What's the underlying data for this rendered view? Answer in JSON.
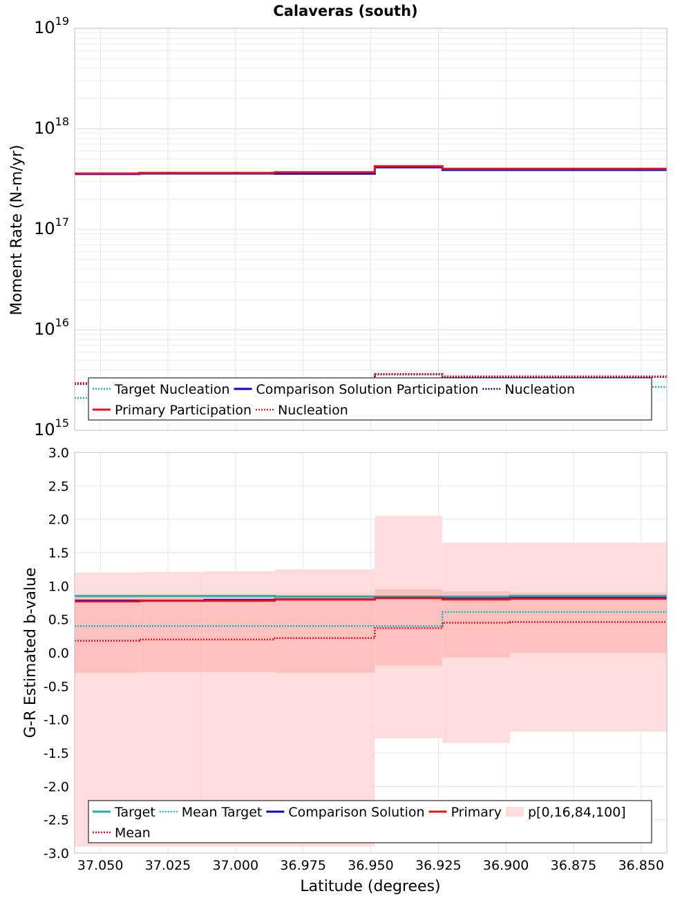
{
  "figure": {
    "title": "Calaveras (south)",
    "xlabel": "Latitude (degrees)"
  },
  "chart_data": [
    {
      "type": "line",
      "step": true,
      "ylabel": "Moment Rate (N-m/yr)",
      "y_scale": "log",
      "ylim": [
        1000000000000000.0,
        1e+19
      ],
      "y_ticks": [
        {
          "value": 1000000000000000.0,
          "base": "10",
          "exp": "15"
        },
        {
          "value": 1e+16,
          "base": "10",
          "exp": "16"
        },
        {
          "value": 1e+17,
          "base": "10",
          "exp": "17"
        },
        {
          "value": 1e+18,
          "base": "10",
          "exp": "18"
        },
        {
          "value": 1e+19,
          "base": "10",
          "exp": "19"
        }
      ],
      "xlim": [
        37.0595,
        36.8405
      ],
      "x_reversed": true,
      "x_ticks": [
        "37.050",
        "37.025",
        "37.000",
        "36.975",
        "36.950",
        "36.925",
        "36.900",
        "36.875",
        "36.850"
      ],
      "grid": true,
      "x_bins": [
        37.0595,
        37.0355,
        37.0115,
        36.9855,
        36.9485,
        36.9235,
        36.8985,
        36.8405
      ],
      "series": [
        {
          "name": "Target Nucleation",
          "style": "dotted",
          "color": "#19b2b2",
          "values": [
            2100000000000000.0,
            2150000000000000.0,
            2200000000000000.0,
            2200000000000000.0,
            2300000000000000.0,
            2600000000000000.0,
            2700000000000000.0
          ]
        },
        {
          "name": "Comparison Solution Participation",
          "style": "solid",
          "color": "#0000cc",
          "values": [
            3.55e+17,
            3.6e+17,
            3.6e+17,
            3.58e+17,
            4.15e+17,
            3.9e+17,
            3.9e+17
          ]
        },
        {
          "name": "Nucleation",
          "style": "dotted",
          "color": "#00008b",
          "values": [
            2900000000000000.0,
            2900000000000000.0,
            2950000000000000.0,
            2950000000000000.0,
            3600000000000000.0,
            3400000000000000.0,
            3400000000000000.0
          ]
        },
        {
          "name": "Primary Participation",
          "style": "solid",
          "color": "#e8121c",
          "values": [
            3.6e+17,
            3.65e+17,
            3.65e+17,
            3.7e+17,
            4.25e+17,
            4e+17,
            4e+17
          ]
        },
        {
          "name": "Nucleation",
          "style": "dotted",
          "color": "#e8121c",
          "values": [
            2950000000000000.0,
            2950000000000000.0,
            3000000000000000.0,
            3000000000000000.0,
            3650000000000000.0,
            3450000000000000.0,
            3450000000000000.0
          ]
        }
      ],
      "legend": "bottom",
      "legend_rows": [
        [
          0,
          1,
          2
        ],
        [
          3,
          4
        ]
      ]
    },
    {
      "type": "line",
      "step": true,
      "ylabel": "G-R Estimated b-value",
      "ylim": [
        -3.0,
        3.0
      ],
      "y_ticks": [
        "-3.0",
        "-2.5",
        "-2.0",
        "-1.5",
        "-1.0",
        "-0.5",
        "0.0",
        "0.5",
        "1.0",
        "1.5",
        "2.0",
        "2.5",
        "3.0"
      ],
      "xlim": [
        37.0595,
        36.8405
      ],
      "x_reversed": true,
      "x_ticks": [
        "37.050",
        "37.025",
        "37.000",
        "36.975",
        "36.950",
        "36.925",
        "36.900",
        "36.875",
        "36.850"
      ],
      "grid": true,
      "x_bins": [
        37.0595,
        37.0355,
        37.0115,
        36.9855,
        36.9485,
        36.9235,
        36.8985,
        36.8405
      ],
      "bands": {
        "name": "p[0,16,84,100]",
        "outer_color": "#ffdcdc",
        "inner_color": "#ffc0c0",
        "p0": [
          -2.9,
          -2.9,
          -2.9,
          -2.9,
          -1.28,
          -1.35,
          -1.18
        ],
        "p16": [
          -0.3,
          -0.29,
          -0.29,
          -0.3,
          -0.19,
          -0.07,
          0.0
        ],
        "p84": [
          0.85,
          0.86,
          0.86,
          0.87,
          0.95,
          0.92,
          0.9
        ],
        "p100": [
          1.2,
          1.21,
          1.22,
          1.25,
          2.05,
          1.65,
          1.65
        ]
      },
      "series": [
        {
          "name": "Target",
          "style": "solid",
          "color": "#2ba8a8",
          "values": [
            0.85,
            0.85,
            0.85,
            0.84,
            0.84,
            0.84,
            0.85
          ]
        },
        {
          "name": "Mean Target",
          "style": "dotted",
          "color": "#19b2b2",
          "values": [
            0.4,
            0.4,
            0.4,
            0.4,
            0.4,
            0.61,
            0.61
          ]
        },
        {
          "name": "Comparison Solution",
          "style": "solid",
          "color": "#0000cc",
          "values": [
            0.78,
            0.78,
            0.79,
            0.8,
            0.82,
            0.81,
            0.82
          ]
        },
        {
          "name": "Primary",
          "style": "solid",
          "color": "#e8121c",
          "values": [
            0.77,
            0.78,
            0.78,
            0.8,
            0.82,
            0.8,
            0.81
          ]
        },
        {
          "name": "Mean",
          "style": "dotted",
          "color": "#e8121c",
          "values": [
            0.18,
            0.2,
            0.2,
            0.22,
            0.37,
            0.45,
            0.46
          ]
        }
      ],
      "legend": "bottom",
      "legend_rows": [
        [
          0,
          1,
          2,
          3,
          "band"
        ],
        [
          4
        ]
      ]
    }
  ]
}
